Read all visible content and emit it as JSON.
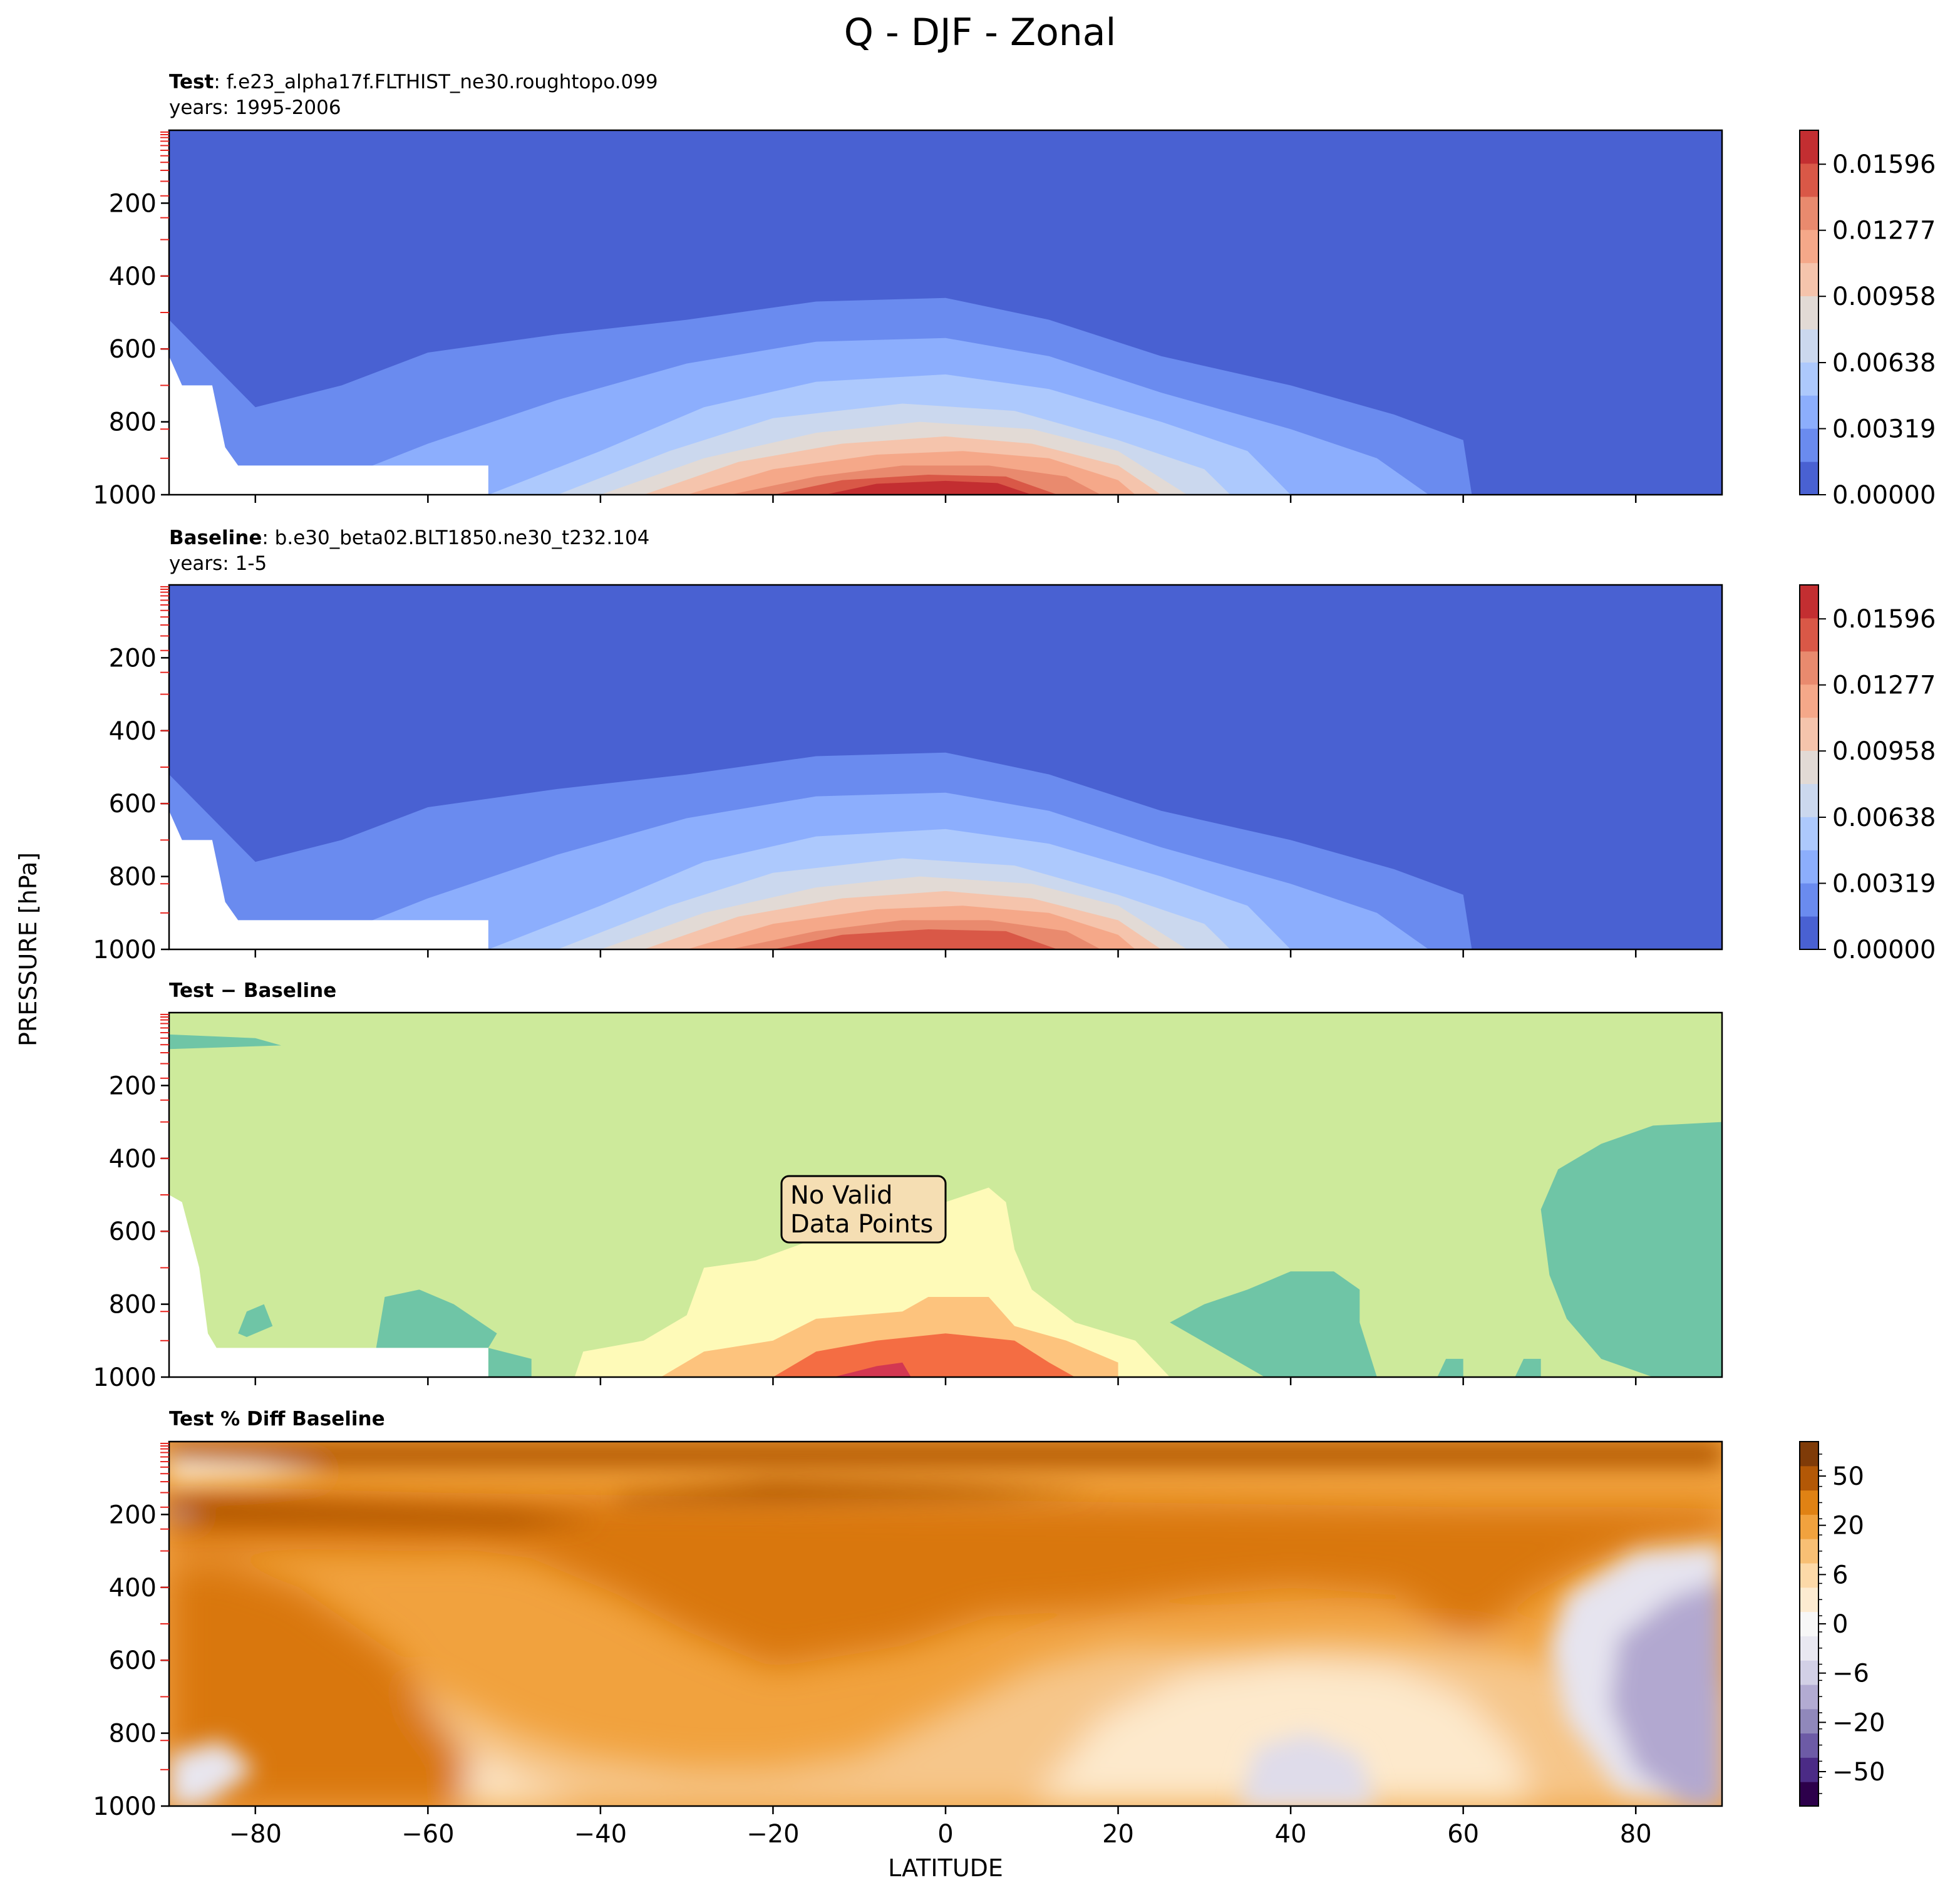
{
  "figure": {
    "title": "Q - DJF - Zonal",
    "xlabel": "LATITUDE",
    "ylabel": "PRESSURE [hPa]"
  },
  "chart_data": [
    {
      "type": "heatmap",
      "panel": "test",
      "title_bold": "Test",
      "title_rest": ": f.e23_alpha17f.FLTHIST_ne30.roughtopo.099",
      "years_text": "years: 1995-2006",
      "x_range": [
        -90,
        90
      ],
      "y_range": [
        0,
        1000
      ],
      "y_inverted": true,
      "x_ticks": [
        -80,
        -60,
        -40,
        -20,
        0,
        20,
        40,
        60,
        80
      ],
      "y_ticks": [
        200,
        400,
        600,
        800,
        1000
      ],
      "colormap": "coolwarm",
      "colorbar_ticks": [
        "0.00000",
        "0.00319",
        "0.00638",
        "0.00958",
        "0.01277",
        "0.01596"
      ],
      "colorbar_range": [
        0,
        0.0176
      ],
      "peak": {
        "lat": -3,
        "lev": 1000,
        "value": 0.0173,
        "lat_width": 32,
        "lev_depth": 575
      }
    },
    {
      "type": "heatmap",
      "panel": "baseline",
      "title_bold": "Baseline",
      "title_rest": ": b.e30_beta02.BLT1850.ne30_t232.104",
      "years_text": "years: 1-5",
      "x_range": [
        -90,
        90
      ],
      "y_range": [
        0,
        1000
      ],
      "y_inverted": true,
      "x_ticks": [
        -80,
        -60,
        -40,
        -20,
        0,
        20,
        40,
        60,
        80
      ],
      "y_ticks": [
        200,
        400,
        600,
        800,
        1000
      ],
      "colormap": "coolwarm",
      "colorbar_ticks": [
        "0.00000",
        "0.00319",
        "0.00638",
        "0.00958",
        "0.01277",
        "0.01596"
      ],
      "colorbar_range": [
        0,
        0.0176
      ],
      "peak": {
        "lat": -3,
        "lev": 1000,
        "value": 0.0163,
        "lat_width": 32,
        "lev_depth": 540
      }
    },
    {
      "type": "heatmap",
      "panel": "diff",
      "title_bold": "Test − Baseline",
      "annotation": [
        "No Valid",
        "Data Points"
      ],
      "x_range": [
        -90,
        90
      ],
      "y_range": [
        0,
        1000
      ],
      "y_inverted": true,
      "x_ticks": [
        -80,
        -60,
        -40,
        -20,
        0,
        20,
        40,
        60,
        80
      ],
      "y_ticks": [
        200,
        400,
        600,
        800,
        1000
      ]
    },
    {
      "type": "heatmap",
      "panel": "pctdiff",
      "title_bold": "Test % Diff Baseline",
      "x_range": [
        -90,
        90
      ],
      "y_range": [
        0,
        1000
      ],
      "y_inverted": true,
      "x_ticks": [
        -80,
        -60,
        -40,
        -20,
        0,
        20,
        40,
        60,
        80
      ],
      "y_ticks": [
        200,
        400,
        600,
        800,
        1000
      ],
      "colormap": "PuOr_r",
      "colorbar_ticks": [
        "50",
        "20",
        "6",
        "0",
        "−6",
        "−20",
        "−50"
      ]
    }
  ],
  "colors": {
    "coolwarm": [
      "#4961d2",
      "#6a8bef",
      "#8caefd",
      "#adc9fd",
      "#cbd8ee",
      "#e2dad5",
      "#f5c4ac",
      "#f5a889",
      "#e98a6e",
      "#d95847",
      "#c32e31"
    ],
    "diff_background": "#cdea9b",
    "diff_teal": "#6fc5a6",
    "diff_yellow": "#fefab8",
    "diff_orange": "#fdc37d",
    "diff_red": "#f46d43",
    "diff_crimson": "#d33752",
    "pct_light": "#fde9cc",
    "pct_mid": "#f1a23e",
    "pct_dark": "#d9770f",
    "pct_darker": "#b35806",
    "pct_purple": "#b2a8d0"
  }
}
